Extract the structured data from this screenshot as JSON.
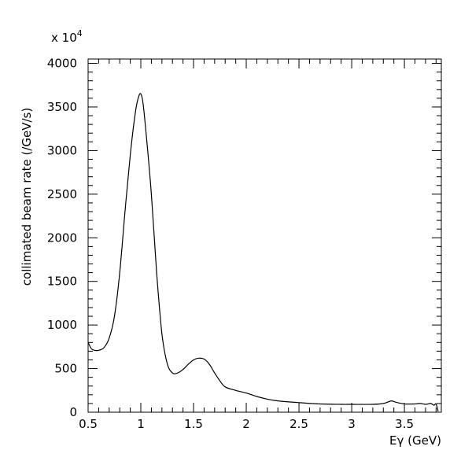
{
  "chart_data": {
    "type": "line",
    "title": "",
    "xlabel": "Eγ (GeV)",
    "ylabel": "collimated beam rate (/GeV/s)",
    "y_multiplier": "x 10",
    "y_multiplier_exponent": "4",
    "xlim": [
      0.5,
      3.85
    ],
    "ylim": [
      0,
      4050
    ],
    "x_ticks": [
      {
        "value": 0.5,
        "label": "0.5"
      },
      {
        "value": 1,
        "label": "1"
      },
      {
        "value": 1.5,
        "label": "1.5"
      },
      {
        "value": 2,
        "label": "2"
      },
      {
        "value": 2.5,
        "label": "2.5"
      },
      {
        "value": 3,
        "label": "3"
      },
      {
        "value": 3.5,
        "label": "3.5"
      }
    ],
    "y_ticks": [
      {
        "value": 0,
        "label": "0"
      },
      {
        "value": 500,
        "label": "500"
      },
      {
        "value": 1000,
        "label": "1000"
      },
      {
        "value": 1500,
        "label": "1500"
      },
      {
        "value": 2000,
        "label": "2000"
      },
      {
        "value": 2500,
        "label": "2500"
      },
      {
        "value": 3000,
        "label": "3000"
      },
      {
        "value": 3500,
        "label": "3500"
      },
      {
        "value": 4000,
        "label": "4000"
      }
    ],
    "series": [
      {
        "x": [
          0.5,
          0.53,
          0.56,
          0.6,
          0.65,
          0.7,
          0.75,
          0.8,
          0.85,
          0.9,
          0.95,
          0.98,
          1.0,
          1.02,
          1.05,
          1.1,
          1.15,
          1.2,
          1.25,
          1.3,
          1.35,
          1.4,
          1.45,
          1.5,
          1.55,
          1.6,
          1.65,
          1.7,
          1.75,
          1.8,
          1.9,
          2.0,
          2.1,
          2.2,
          2.3,
          2.5,
          2.7,
          2.9,
          3.0,
          3.2,
          3.3,
          3.35,
          3.38,
          3.42,
          3.5,
          3.6,
          3.65,
          3.7,
          3.75,
          3.78,
          3.8,
          3.82
        ],
        "y": [
          800,
          730,
          710,
          710,
          740,
          850,
          1100,
          1600,
          2300,
          2950,
          3450,
          3620,
          3650,
          3550,
          3200,
          2500,
          1600,
          900,
          560,
          450,
          450,
          490,
          550,
          600,
          620,
          610,
          550,
          450,
          360,
          290,
          250,
          220,
          180,
          150,
          130,
          110,
          95,
          90,
          90,
          90,
          100,
          120,
          130,
          115,
          95,
          95,
          100,
          90,
          100,
          80,
          95,
          10
        ]
      }
    ]
  }
}
